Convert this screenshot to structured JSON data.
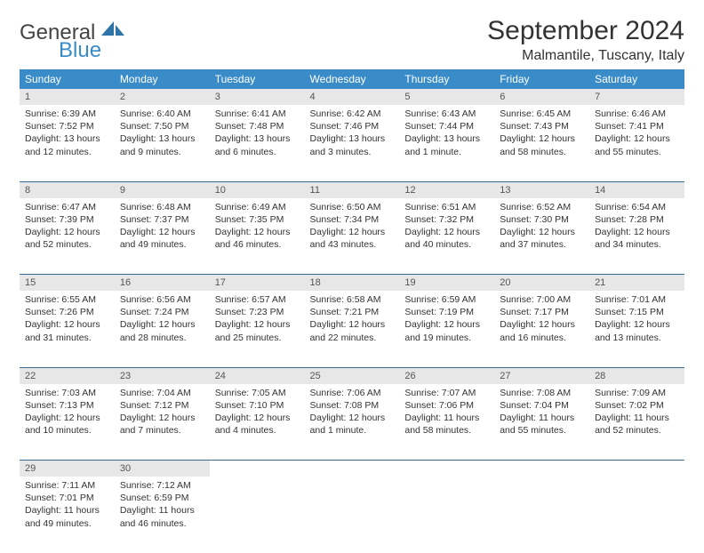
{
  "brand": {
    "name1": "General",
    "name2": "Blue"
  },
  "title": "September 2024",
  "location": "Malmantile, Tuscany, Italy",
  "theme": {
    "header_bg": "#3a8cc9",
    "header_fg": "#ffffff",
    "daynum_bg": "#e7e7e7",
    "rule_color": "#3a6a8f",
    "brand_accent": "#3a8cc9"
  },
  "weekdays": [
    "Sunday",
    "Monday",
    "Tuesday",
    "Wednesday",
    "Thursday",
    "Friday",
    "Saturday"
  ],
  "weeks": [
    [
      {
        "n": "1",
        "sr": "6:39 AM",
        "ss": "7:52 PM",
        "dl": "13 hours and 12 minutes."
      },
      {
        "n": "2",
        "sr": "6:40 AM",
        "ss": "7:50 PM",
        "dl": "13 hours and 9 minutes."
      },
      {
        "n": "3",
        "sr": "6:41 AM",
        "ss": "7:48 PM",
        "dl": "13 hours and 6 minutes."
      },
      {
        "n": "4",
        "sr": "6:42 AM",
        "ss": "7:46 PM",
        "dl": "13 hours and 3 minutes."
      },
      {
        "n": "5",
        "sr": "6:43 AM",
        "ss": "7:44 PM",
        "dl": "13 hours and 1 minute."
      },
      {
        "n": "6",
        "sr": "6:45 AM",
        "ss": "7:43 PM",
        "dl": "12 hours and 58 minutes."
      },
      {
        "n": "7",
        "sr": "6:46 AM",
        "ss": "7:41 PM",
        "dl": "12 hours and 55 minutes."
      }
    ],
    [
      {
        "n": "8",
        "sr": "6:47 AM",
        "ss": "7:39 PM",
        "dl": "12 hours and 52 minutes."
      },
      {
        "n": "9",
        "sr": "6:48 AM",
        "ss": "7:37 PM",
        "dl": "12 hours and 49 minutes."
      },
      {
        "n": "10",
        "sr": "6:49 AM",
        "ss": "7:35 PM",
        "dl": "12 hours and 46 minutes."
      },
      {
        "n": "11",
        "sr": "6:50 AM",
        "ss": "7:34 PM",
        "dl": "12 hours and 43 minutes."
      },
      {
        "n": "12",
        "sr": "6:51 AM",
        "ss": "7:32 PM",
        "dl": "12 hours and 40 minutes."
      },
      {
        "n": "13",
        "sr": "6:52 AM",
        "ss": "7:30 PM",
        "dl": "12 hours and 37 minutes."
      },
      {
        "n": "14",
        "sr": "6:54 AM",
        "ss": "7:28 PM",
        "dl": "12 hours and 34 minutes."
      }
    ],
    [
      {
        "n": "15",
        "sr": "6:55 AM",
        "ss": "7:26 PM",
        "dl": "12 hours and 31 minutes."
      },
      {
        "n": "16",
        "sr": "6:56 AM",
        "ss": "7:24 PM",
        "dl": "12 hours and 28 minutes."
      },
      {
        "n": "17",
        "sr": "6:57 AM",
        "ss": "7:23 PM",
        "dl": "12 hours and 25 minutes."
      },
      {
        "n": "18",
        "sr": "6:58 AM",
        "ss": "7:21 PM",
        "dl": "12 hours and 22 minutes."
      },
      {
        "n": "19",
        "sr": "6:59 AM",
        "ss": "7:19 PM",
        "dl": "12 hours and 19 minutes."
      },
      {
        "n": "20",
        "sr": "7:00 AM",
        "ss": "7:17 PM",
        "dl": "12 hours and 16 minutes."
      },
      {
        "n": "21",
        "sr": "7:01 AM",
        "ss": "7:15 PM",
        "dl": "12 hours and 13 minutes."
      }
    ],
    [
      {
        "n": "22",
        "sr": "7:03 AM",
        "ss": "7:13 PM",
        "dl": "12 hours and 10 minutes."
      },
      {
        "n": "23",
        "sr": "7:04 AM",
        "ss": "7:12 PM",
        "dl": "12 hours and 7 minutes."
      },
      {
        "n": "24",
        "sr": "7:05 AM",
        "ss": "7:10 PM",
        "dl": "12 hours and 4 minutes."
      },
      {
        "n": "25",
        "sr": "7:06 AM",
        "ss": "7:08 PM",
        "dl": "12 hours and 1 minute."
      },
      {
        "n": "26",
        "sr": "7:07 AM",
        "ss": "7:06 PM",
        "dl": "11 hours and 58 minutes."
      },
      {
        "n": "27",
        "sr": "7:08 AM",
        "ss": "7:04 PM",
        "dl": "11 hours and 55 minutes."
      },
      {
        "n": "28",
        "sr": "7:09 AM",
        "ss": "7:02 PM",
        "dl": "11 hours and 52 minutes."
      }
    ],
    [
      {
        "n": "29",
        "sr": "7:11 AM",
        "ss": "7:01 PM",
        "dl": "11 hours and 49 minutes."
      },
      {
        "n": "30",
        "sr": "7:12 AM",
        "ss": "6:59 PM",
        "dl": "11 hours and 46 minutes."
      },
      null,
      null,
      null,
      null,
      null
    ]
  ],
  "labels": {
    "sunrise": "Sunrise:",
    "sunset": "Sunset:",
    "daylight": "Daylight:"
  }
}
